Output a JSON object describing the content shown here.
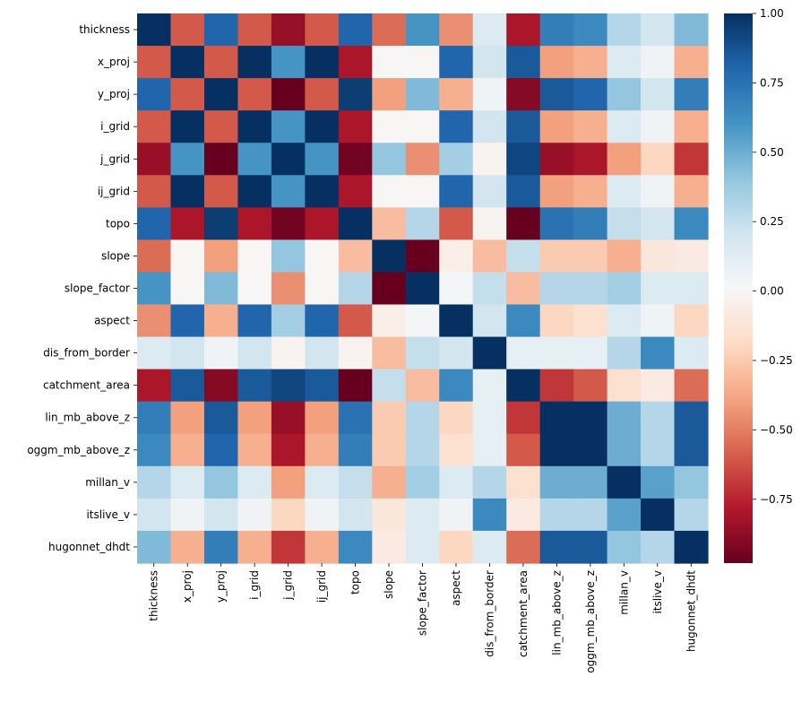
{
  "chart_data": {
    "type": "heatmap",
    "labels": [
      "thickness",
      "x_proj",
      "y_proj",
      "i_grid",
      "j_grid",
      "ij_grid",
      "topo",
      "slope",
      "slope_factor",
      "aspect",
      "dis_from_border",
      "catchment_area",
      "lin_mb_above_z",
      "oggm_mb_above_z",
      "millan_v",
      "itslive_v",
      "hugonnet_dhdt"
    ],
    "values": [
      [
        1.0,
        -0.6,
        0.8,
        -0.6,
        -0.85,
        -0.6,
        0.8,
        -0.55,
        0.6,
        -0.45,
        0.15,
        -0.8,
        0.7,
        0.65,
        0.3,
        0.2,
        0.45
      ],
      [
        -0.6,
        1.0,
        -0.6,
        1.0,
        0.6,
        1.0,
        -0.8,
        0.0,
        0.0,
        0.8,
        0.2,
        0.85,
        -0.4,
        -0.35,
        0.15,
        0.05,
        -0.35
      ],
      [
        0.8,
        -0.6,
        1.0,
        -0.6,
        -0.98,
        -0.6,
        0.95,
        -0.4,
        0.45,
        -0.35,
        0.05,
        -0.9,
        0.85,
        0.8,
        0.4,
        0.2,
        0.7
      ],
      [
        -0.6,
        1.0,
        -0.6,
        1.0,
        0.6,
        1.0,
        -0.8,
        0.0,
        0.0,
        0.8,
        0.2,
        0.85,
        -0.4,
        -0.35,
        0.15,
        0.05,
        -0.35
      ],
      [
        -0.85,
        0.6,
        -0.98,
        0.6,
        1.0,
        0.6,
        -0.95,
        0.4,
        -0.45,
        0.35,
        -0.02,
        0.92,
        -0.85,
        -0.8,
        -0.4,
        -0.2,
        -0.7
      ],
      [
        -0.6,
        1.0,
        -0.6,
        1.0,
        0.6,
        1.0,
        -0.8,
        0.0,
        0.0,
        0.8,
        0.2,
        0.85,
        -0.4,
        -0.35,
        0.15,
        0.05,
        -0.35
      ],
      [
        0.8,
        -0.8,
        0.95,
        -0.8,
        -0.95,
        -0.8,
        1.0,
        -0.3,
        0.3,
        -0.6,
        -0.02,
        -0.98,
        0.75,
        0.7,
        0.25,
        0.2,
        0.65
      ],
      [
        -0.55,
        0.0,
        -0.4,
        0.0,
        0.4,
        0.0,
        -0.3,
        1.0,
        -0.98,
        -0.05,
        -0.3,
        0.25,
        -0.25,
        -0.25,
        -0.35,
        -0.1,
        -0.08
      ],
      [
        0.6,
        0.0,
        0.45,
        0.0,
        -0.45,
        0.0,
        0.3,
        -0.98,
        1.0,
        0.03,
        0.25,
        -0.3,
        0.3,
        0.3,
        0.35,
        0.15,
        0.15
      ],
      [
        -0.45,
        0.8,
        -0.35,
        0.8,
        0.35,
        0.8,
        -0.6,
        -0.05,
        0.03,
        1.0,
        0.2,
        0.65,
        -0.2,
        -0.15,
        0.15,
        0.05,
        -0.2
      ],
      [
        0.15,
        0.2,
        0.05,
        0.2,
        -0.02,
        0.2,
        -0.02,
        -0.3,
        0.25,
        0.2,
        1.0,
        0.1,
        0.1,
        0.1,
        0.3,
        0.65,
        0.15
      ],
      [
        -0.8,
        0.85,
        -0.9,
        0.85,
        0.92,
        0.85,
        -0.98,
        0.25,
        -0.3,
        0.65,
        0.1,
        1.0,
        -0.7,
        -0.6,
        -0.15,
        -0.08,
        -0.55
      ],
      [
        0.7,
        -0.4,
        0.85,
        -0.4,
        -0.85,
        -0.4,
        0.75,
        -0.25,
        0.3,
        -0.2,
        0.1,
        -0.7,
        1.0,
        1.0,
        0.5,
        0.3,
        0.85
      ],
      [
        0.65,
        -0.35,
        0.8,
        -0.35,
        -0.8,
        -0.35,
        0.7,
        -0.25,
        0.3,
        -0.15,
        0.1,
        -0.6,
        1.0,
        1.0,
        0.5,
        0.3,
        0.85
      ],
      [
        0.3,
        0.15,
        0.4,
        0.15,
        -0.4,
        0.15,
        0.25,
        -0.35,
        0.35,
        0.15,
        0.3,
        -0.15,
        0.5,
        0.5,
        1.0,
        0.55,
        0.4
      ],
      [
        0.2,
        0.05,
        0.2,
        0.05,
        -0.2,
        0.05,
        0.2,
        -0.1,
        0.15,
        0.05,
        0.65,
        -0.08,
        0.3,
        0.3,
        0.55,
        1.0,
        0.3
      ],
      [
        0.45,
        -0.35,
        0.7,
        -0.35,
        -0.7,
        -0.35,
        0.65,
        -0.08,
        0.15,
        -0.2,
        0.15,
        -0.55,
        0.85,
        0.85,
        0.4,
        0.3,
        1.0
      ]
    ],
    "colormap": "RdBu",
    "vmin": -1.0,
    "vmax": 1.0,
    "colorbar_ticks": [
      "1.00",
      "0.75",
      "0.50",
      "0.25",
      "0.00",
      "−0.25",
      "−0.50",
      "−0.75"
    ],
    "colorbar_tick_values": [
      1.0,
      0.75,
      0.5,
      0.25,
      0.0,
      -0.25,
      -0.5,
      -0.75
    ],
    "colorbar_range": [
      -0.98,
      1.0
    ],
    "grid": false,
    "legend": "colorbar-right"
  }
}
